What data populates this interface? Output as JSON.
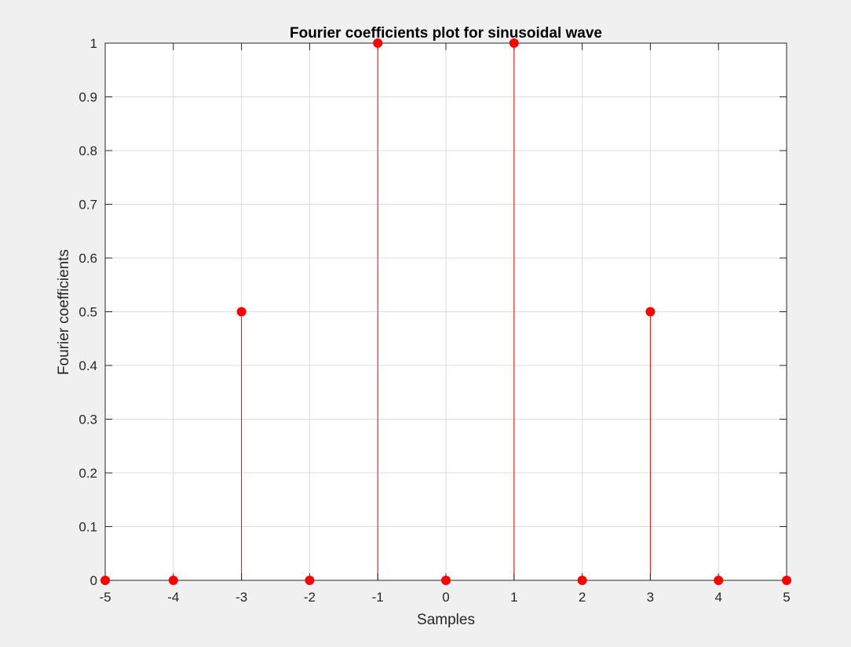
{
  "colors": {
    "figure_background": "#f0f0f0",
    "axes_background": "#ffffff",
    "stem_color": "#ff0000",
    "grid_color": "#dcdcdc",
    "axis_color": "#262626"
  },
  "chart_data": {
    "type": "scatter",
    "style": "stem",
    "title": "Fourier coefficients plot for sinusoidal wave",
    "xlabel": "Samples",
    "ylabel": "Fourier coefficients",
    "xlim": [
      -5,
      5
    ],
    "ylim": [
      0,
      1
    ],
    "grid": true,
    "x_ticks": [
      "-5",
      "-4",
      "-3",
      "-2",
      "-1",
      "0",
      "1",
      "2",
      "3",
      "4",
      "5"
    ],
    "y_ticks": [
      "0",
      "0.1",
      "0.2",
      "0.3",
      "0.4",
      "0.5",
      "0.6",
      "0.7",
      "0.8",
      "0.9",
      "1"
    ],
    "x": [
      -5,
      -4,
      -3,
      -2,
      -1,
      0,
      1,
      2,
      3,
      4,
      5
    ],
    "y": [
      0,
      0,
      0.5,
      0,
      1,
      0,
      1,
      0,
      0.5,
      0,
      0
    ]
  }
}
